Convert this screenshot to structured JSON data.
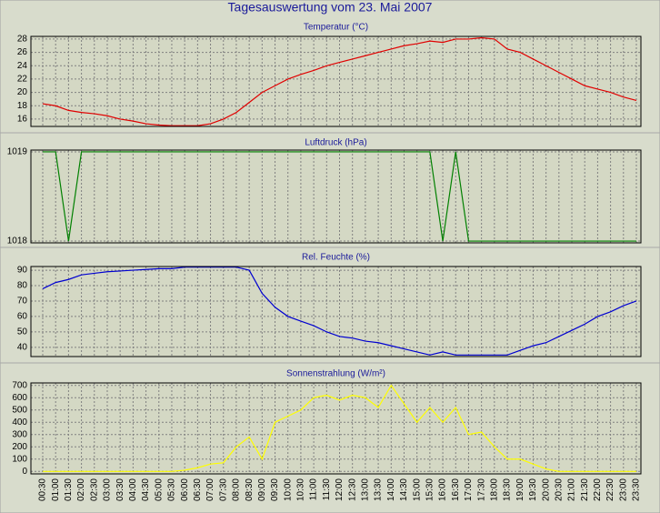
{
  "title": "Tagesauswertung vom 23. Mai 2007",
  "chart_data": [
    {
      "type": "line",
      "title": "Temperatur (°C)",
      "color": "#e00000",
      "ylim": [
        14.9,
        28.4
      ],
      "yticks": [
        16,
        18,
        20,
        22,
        24,
        26,
        28
      ],
      "grid": true,
      "values": [
        18.3,
        18,
        17.3,
        17,
        16.8,
        16.5,
        16,
        15.7,
        15.3,
        15.1,
        15,
        15,
        15,
        15.3,
        16,
        17,
        18.5,
        20,
        21,
        22,
        22.7,
        23.3,
        24,
        24.5,
        25,
        25.5,
        26,
        26.5,
        27,
        27.3,
        27.7,
        27.5,
        28,
        28,
        28.2,
        28,
        26.5,
        26,
        25,
        24,
        23,
        22,
        21,
        20.5,
        20,
        19.3,
        18.8
      ]
    },
    {
      "type": "line",
      "title": "Luftdruck (hPa)",
      "color": "#008000",
      "ylim": [
        1017.98,
        1019.02
      ],
      "yticks": [
        1018,
        1019
      ],
      "grid": true,
      "values": [
        1019,
        1019,
        1018,
        1019,
        1019,
        1019,
        1019,
        1019,
        1019,
        1019,
        1019,
        1019,
        1019,
        1019,
        1019,
        1019,
        1019,
        1019,
        1019,
        1019,
        1019,
        1019,
        1019,
        1019,
        1019,
        1019,
        1019,
        1019,
        1019,
        1019,
        1019,
        1018,
        1019,
        1018,
        1018,
        1018,
        1018,
        1018,
        1018,
        1018,
        1018,
        1018,
        1018,
        1018,
        1018,
        1018,
        1018
      ]
    },
    {
      "type": "line",
      "title": "Rel. Feuchte (%)",
      "color": "#0000d0",
      "ylim": [
        34,
        92.4
      ],
      "yticks": [
        40,
        50,
        60,
        70,
        80,
        90
      ],
      "grid": true,
      "values": [
        78,
        82,
        84,
        87,
        88,
        89,
        89.5,
        90,
        90.5,
        91,
        91,
        92,
        92,
        92,
        92,
        92,
        90,
        75,
        66,
        60,
        57,
        54,
        50,
        47,
        46,
        44,
        43,
        41,
        39,
        37,
        35,
        37,
        35,
        35,
        35,
        35,
        35,
        38,
        41,
        43,
        47,
        51,
        55,
        60,
        63,
        67,
        70
      ]
    },
    {
      "type": "line",
      "title": "Sonnenstrahlung (W/m²)",
      "color": "#ffff00",
      "ylim": [
        -20,
        720
      ],
      "yticks": [
        0,
        100,
        200,
        300,
        400,
        500,
        600,
        700
      ],
      "grid": true,
      "values": [
        0,
        0,
        0,
        0,
        0,
        0,
        0,
        0,
        0,
        0,
        0,
        10,
        30,
        60,
        70,
        200,
        280,
        100,
        400,
        450,
        500,
        600,
        620,
        580,
        620,
        600,
        520,
        700,
        550,
        400,
        520,
        400,
        520,
        300,
        320,
        200,
        100,
        100,
        60,
        20,
        0,
        0,
        0,
        0,
        0,
        0,
        0
      ],
      "categories": [
        "00:30",
        "01:00",
        "01:30",
        "02:00",
        "02:30",
        "03:00",
        "03:30",
        "04:00",
        "04:30",
        "05:00",
        "05:30",
        "06:00",
        "06:30",
        "07:00",
        "07:30",
        "08:00",
        "08:30",
        "09:00",
        "09:30",
        "10:00",
        "10:30",
        "11:00",
        "11:30",
        "12:00",
        "12:30",
        "13:00",
        "13:30",
        "14:00",
        "14:30",
        "15:00",
        "15:30",
        "16:00",
        "16:30",
        "17:00",
        "17:30",
        "18:00",
        "18:30",
        "19:00",
        "19:30",
        "20:00",
        "20:30",
        "21:00",
        "21:30",
        "22:00",
        "22:30",
        "23:00",
        "23:30"
      ]
    }
  ]
}
